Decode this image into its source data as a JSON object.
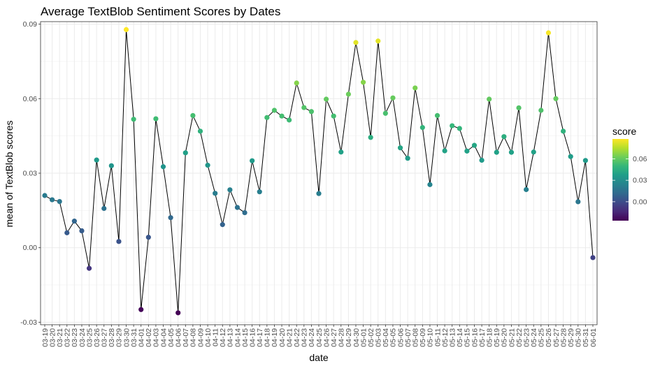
{
  "chart_data": {
    "type": "line",
    "title": "Average TextBlob Sentiment Scores by Dates",
    "xlabel": "date",
    "ylabel": "mean of TextBlob scores",
    "ylim": [
      -0.031,
      0.091
    ],
    "yticks": [
      -0.03,
      0.0,
      0.03,
      0.06,
      0.09
    ],
    "ytick_labels": [
      "-0.03",
      "0.00",
      "0.03",
      "0.06",
      "0.09"
    ],
    "grid": true,
    "legend": {
      "title": "score",
      "placement": "right",
      "ticks": [
        0.0,
        0.03,
        0.06
      ],
      "tick_labels": [
        "0.00",
        "0.03",
        "0.06"
      ],
      "min": -0.0265,
      "max": 0.0878,
      "colors": [
        "#440154",
        "#482878",
        "#3e4989",
        "#31688e",
        "#26828e",
        "#1f9e89",
        "#35b779",
        "#6ece58",
        "#b5de2b",
        "#fde725"
      ]
    },
    "line_color": "#000000",
    "categories": [
      "03-19",
      "03-20",
      "03-21",
      "03-22",
      "03-23",
      "03-24",
      "03-25",
      "03-26",
      "03-27",
      "03-28",
      "03-29",
      "03-30",
      "03-31",
      "04-01",
      "04-02",
      "04-03",
      "04-04",
      "04-05",
      "04-06",
      "04-07",
      "04-08",
      "04-09",
      "04-10",
      "04-11",
      "04-12",
      "04-13",
      "04-14",
      "04-15",
      "04-16",
      "04-17",
      "04-18",
      "04-19",
      "04-20",
      "04-21",
      "04-22",
      "04-23",
      "04-24",
      "04-25",
      "04-26",
      "04-27",
      "04-28",
      "04-29",
      "04-30",
      "05-01",
      "05-02",
      "05-03",
      "05-04",
      "05-05",
      "05-06",
      "05-07",
      "05-08",
      "05-09",
      "05-10",
      "05-11",
      "05-12",
      "05-13",
      "05-14",
      "05-15",
      "05-16",
      "05-17",
      "05-18",
      "05-19",
      "05-20",
      "05-21",
      "05-22",
      "05-23",
      "05-24",
      "05-25",
      "05-26",
      "05-27",
      "05-28",
      "05-29",
      "05-30",
      "05-31",
      "06-01"
    ],
    "series": [
      {
        "values": [
          0.021,
          0.0193,
          0.0186,
          0.006,
          0.0107,
          0.0068,
          -0.0083,
          0.0353,
          0.0158,
          0.033,
          0.0025,
          0.0878,
          0.0517,
          -0.0249,
          0.0042,
          0.0519,
          0.0326,
          0.0121,
          -0.0262,
          0.0382,
          0.0532,
          0.0469,
          0.0332,
          0.0219,
          0.0093,
          0.0233,
          0.0162,
          0.0141,
          0.035,
          0.0225,
          0.0524,
          0.0553,
          0.053,
          0.0514,
          0.0663,
          0.0564,
          0.0548,
          0.0218,
          0.0598,
          0.053,
          0.0385,
          0.0618,
          0.0826,
          0.0666,
          0.0444,
          0.0832,
          0.0541,
          0.0603,
          0.0402,
          0.036,
          0.0643,
          0.0484,
          0.0254,
          0.0532,
          0.039,
          0.0491,
          0.048,
          0.0389,
          0.0412,
          0.0352,
          0.0598,
          0.0384,
          0.0447,
          0.0384,
          0.0563,
          0.0234,
          0.0385,
          0.0553,
          0.0865,
          0.06,
          0.0469,
          0.0367,
          0.0185,
          0.0351,
          -0.004
        ]
      }
    ]
  }
}
